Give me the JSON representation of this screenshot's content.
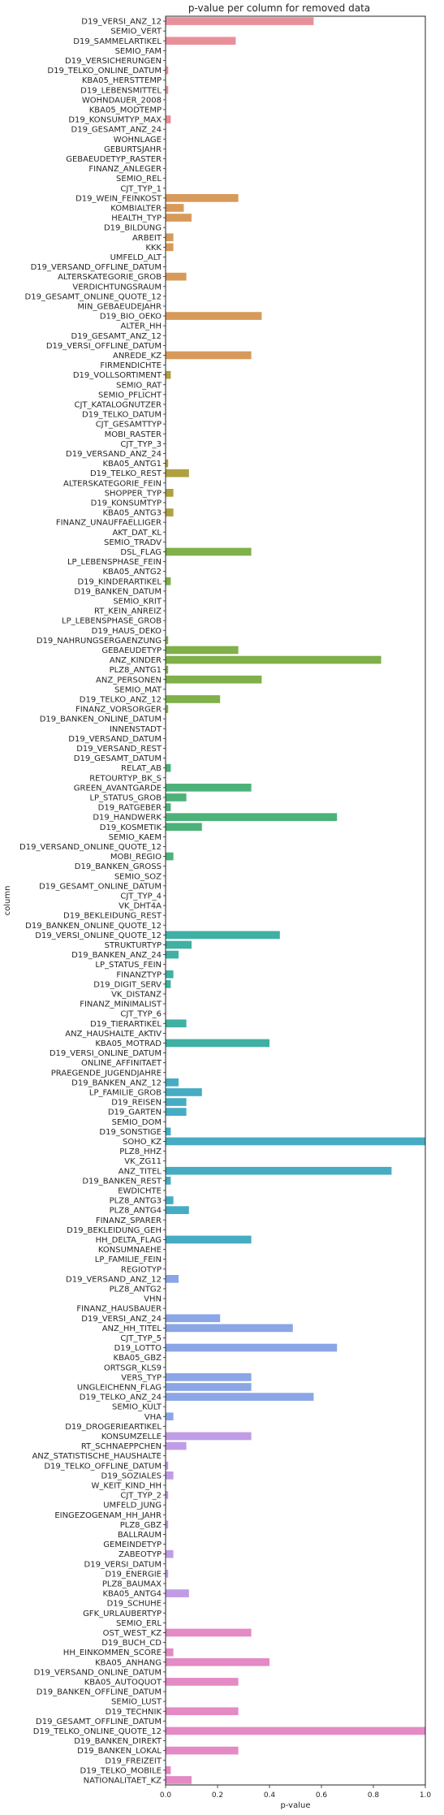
{
  "chart_data": {
    "type": "bar",
    "orientation": "horizontal",
    "title": "p-value per column for removed data",
    "xlabel": "p-value",
    "ylabel": "column",
    "xlim": [
      0,
      1.0
    ],
    "xticks": [
      "0.0",
      "0.2",
      "0.4",
      "0.6",
      "0.8",
      "1.0"
    ],
    "grid": false,
    "palette": [
      "#e8909a",
      "#d89a5a",
      "#b0a040",
      "#7fb04a",
      "#4cb27a",
      "#3fb0a3",
      "#46acc4",
      "#8aa6e6",
      "#c09ce6",
      "#e48ac4"
    ],
    "categories": [
      "D19_VERSI_ANZ_12",
      "SEMIO_VERT",
      "D19_SAMMELARTIKEL",
      "SEMIO_FAM",
      "D19_VERSICHERUNGEN",
      "D19_TELKO_ONLINE_DATUM",
      "KBA05_HERSTTEMP",
      "D19_LEBENSMITTEL",
      "WOHNDAUER_2008",
      "KBA05_MODTEMP",
      "D19_KONSUMTYP_MAX",
      "D19_GESAMT_ANZ_24",
      "WOHNLAGE",
      "GEBURTSJAHR",
      "GEBAEUDETYP_RASTER",
      "FINANZ_ANLEGER",
      "SEMIO_REL",
      "CJT_TYP_1",
      "D19_WEIN_FEINKOST",
      "KOMBIALTER",
      "HEALTH_TYP",
      "D19_BILDUNG",
      "ARBEIT",
      "KKK",
      "UMFELD_ALT",
      "D19_VERSAND_OFFLINE_DATUM",
      "ALTERSKATEGORIE_GROB",
      "VERDICHTUNGSRAUM",
      "D19_GESAMT_ONLINE_QUOTE_12",
      "MIN_GEBAEUDEJAHR",
      "D19_BIO_OEKO",
      "ALTER_HH",
      "D19_GESAMT_ANZ_12",
      "D19_VERSI_OFFLINE_DATUM",
      "ANREDE_KZ",
      "FIRMENDICHTE",
      "D19_VOLLSORTIMENT",
      "SEMIO_RAT",
      "SEMIO_PFLICHT",
      "CJT_KATALOGNUTZER",
      "D19_TELKO_DATUM",
      "CJT_GESAMTTYP",
      "MOBI_RASTER",
      "CJT_TYP_3",
      "D19_VERSAND_ANZ_24",
      "KBA05_ANTG1",
      "D19_TELKO_REST",
      "ALTERSKATEGORIE_FEIN",
      "SHOPPER_TYP",
      "D19_KONSUMTYP",
      "KBA05_ANTG3",
      "FINANZ_UNAUFFAELLIGER",
      "AKT_DAT_KL",
      "SEMIO_TRADV",
      "DSL_FLAG",
      "LP_LEBENSPHASE_FEIN",
      "KBA05_ANTG2",
      "D19_KINDERARTIKEL",
      "D19_BANKEN_DATUM",
      "SEMIO_KRIT",
      "RT_KEIN_ANREIZ",
      "LP_LEBENSPHASE_GROB",
      "D19_HAUS_DEKO",
      "D19_NAHRUNGSERGAENZUNG",
      "GEBAEUDETYP",
      "ANZ_KINDER",
      "PLZ8_ANTG1",
      "ANZ_PERSONEN",
      "SEMIO_MAT",
      "D19_TELKO_ANZ_12",
      "FINANZ_VORSORGER",
      "D19_BANKEN_ONLINE_DATUM",
      "INNENSTADT",
      "D19_VERSAND_DATUM",
      "D19_VERSAND_REST",
      "D19_GESAMT_DATUM",
      "RELAT_AB",
      "RETOURTYP_BK_S",
      "GREEN_AVANTGARDE",
      "LP_STATUS_GROB",
      "D19_RATGEBER",
      "D19_HANDWERK",
      "D19_KOSMETIK",
      "SEMIO_KAEM",
      "D19_VERSAND_ONLINE_QUOTE_12",
      "MOBI_REGIO",
      "D19_BANKEN_GROSS",
      "SEMIO_SOZ",
      "D19_GESAMT_ONLINE_DATUM",
      "CJT_TYP_4",
      "VK_DHT4A",
      "D19_BEKLEIDUNG_REST",
      "D19_BANKEN_ONLINE_QUOTE_12",
      "D19_VERSI_ONLINE_QUOTE_12",
      "STRUKTURTYP",
      "D19_BANKEN_ANZ_24",
      "LP_STATUS_FEIN",
      "FINANZTYP",
      "D19_DIGIT_SERV",
      "VK_DISTANZ",
      "FINANZ_MINIMALIST",
      "CJT_TYP_6",
      "D19_TIERARTIKEL",
      "ANZ_HAUSHALTE_AKTIV",
      "KBA05_MOTRAD",
      "D19_VERSI_ONLINE_DATUM",
      "ONLINE_AFFINITAET",
      "PRAEGENDE_JUGENDJAHRE",
      "D19_BANKEN_ANZ_12",
      "LP_FAMILIE_GROB",
      "D19_REISEN",
      "D19_GARTEN",
      "SEMIO_DOM",
      "D19_SONSTIGE",
      "SOHO_KZ",
      "PLZ8_HHZ",
      "VK_ZG11",
      "ANZ_TITEL",
      "D19_BANKEN_REST",
      "EWDICHTE",
      "PLZ8_ANTG3",
      "PLZ8_ANTG4",
      "FINANZ_SPARER",
      "D19_BEKLEIDUNG_GEH",
      "HH_DELTA_FLAG",
      "KONSUMNAEHE",
      "LP_FAMILIE_FEIN",
      "REGIOTYP",
      "D19_VERSAND_ANZ_12",
      "PLZ8_ANTG2",
      "VHN",
      "FINANZ_HAUSBAUER",
      "D19_VERSI_ANZ_24",
      "ANZ_HH_TITEL",
      "CJT_TYP_5",
      "D19_LOTTO",
      "KBA05_GBZ",
      "ORTSGR_KLS9",
      "VERS_TYP",
      "UNGLEICHENN_FLAG",
      "D19_TELKO_ANZ_24",
      "SEMIO_KULT",
      "VHA",
      "D19_DROGERIEARTIKEL",
      "KONSUMZELLE",
      "RT_SCHNAEPPCHEN",
      "ANZ_STATISTISCHE_HAUSHALTE",
      "D19_TELKO_OFFLINE_DATUM",
      "D19_SOZIALES",
      "W_KEIT_KIND_HH",
      "CJT_TYP_2",
      "UMFELD_JUNG",
      "EINGEZOGENAM_HH_JAHR",
      "PLZ8_GBZ",
      "BALLRAUM",
      "GEMEINDETYP",
      "ZABEOTYP",
      "D19_VERSI_DATUM",
      "D19_ENERGIE",
      "PLZ8_BAUMAX",
      "KBA05_ANTG4",
      "D19_SCHUHE",
      "GFK_URLAUBERTYP",
      "SEMIO_ERL",
      "OST_WEST_KZ",
      "D19_BUCH_CD",
      "HH_EINKOMMEN_SCORE",
      "KBA05_ANHANG",
      "D19_VERSAND_ONLINE_DATUM",
      "KBA05_AUTOQUOT",
      "D19_BANKEN_OFFLINE_DATUM",
      "SEMIO_LUST",
      "D19_TECHNIK",
      "D19_GESAMT_OFFLINE_DATUM",
      "D19_TELKO_ONLINE_QUOTE_12",
      "D19_BANKEN_DIREKT",
      "D19_BANKEN_LOKAL",
      "D19_FREIZEIT",
      "D19_TELKO_MOBILE",
      "NATIONALITAET_KZ"
    ],
    "values": [
      0.57,
      0.0,
      0.27,
      0.0,
      0.0,
      0.01,
      0.0,
      0.01,
      0.0,
      0.0,
      0.02,
      0.0,
      0.0,
      0.0,
      0.0,
      0.0,
      0.0,
      0.0,
      0.28,
      0.07,
      0.1,
      0.0,
      0.03,
      0.03,
      0.0,
      0.0,
      0.08,
      0.0,
      0.0,
      0.0,
      0.37,
      0.0,
      0.0,
      0.0,
      0.33,
      0.0,
      0.02,
      0.0,
      0.0,
      0.0,
      0.0,
      0.0,
      0.0,
      0.0,
      0.0,
      0.01,
      0.09,
      0.0,
      0.03,
      0.0,
      0.03,
      0.0,
      0.0,
      0.0,
      0.33,
      0.0,
      0.0,
      0.02,
      0.0,
      0.0,
      0.0,
      0.0,
      0.0,
      0.01,
      0.28,
      0.83,
      0.01,
      0.37,
      0.0,
      0.21,
      0.01,
      0.0,
      0.0,
      0.0,
      0.0,
      0.0,
      0.02,
      0.0,
      0.33,
      0.08,
      0.02,
      0.66,
      0.14,
      0.0,
      0.0,
      0.03,
      0.0,
      0.0,
      0.0,
      0.0,
      0.0,
      0.0,
      0.0,
      0.44,
      0.1,
      0.05,
      0.0,
      0.03,
      0.02,
      0.0,
      0.0,
      0.0,
      0.08,
      0.0,
      0.4,
      0.0,
      0.0,
      0.0,
      0.05,
      0.14,
      0.08,
      0.08,
      0.0,
      0.02,
      1.0,
      0.0,
      0.0,
      0.87,
      0.02,
      0.0,
      0.03,
      0.09,
      0.0,
      0.0,
      0.33,
      0.0,
      0.0,
      0.0,
      0.05,
      0.0,
      0.0,
      0.0,
      0.21,
      0.49,
      0.0,
      0.66,
      0.0,
      0.0,
      0.33,
      0.33,
      0.57,
      0.0,
      0.03,
      0.0,
      0.33,
      0.08,
      0.0,
      0.01,
      0.03,
      0.0,
      0.01,
      0.0,
      0.0,
      0.01,
      0.0,
      0.0,
      0.03,
      0.0,
      0.01,
      0.0,
      0.09,
      0.0,
      0.0,
      0.0,
      0.33,
      0.0,
      0.03,
      0.4,
      0.0,
      0.28,
      0.0,
      0.0,
      0.28,
      0.0,
      1.0,
      0.0,
      0.28,
      0.0,
      0.02,
      0.1
    ]
  }
}
